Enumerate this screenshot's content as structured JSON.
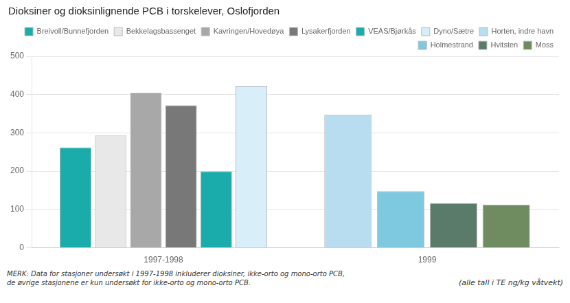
{
  "chart_data": {
    "type": "bar",
    "title": "Dioksiner og dioksinlignende PCB i torskelever, Oslofjorden",
    "categories": [
      "1997-1998",
      "1999"
    ],
    "series": [
      {
        "name": "Breivoll/Bunnefjorden",
        "color": "#1aacaa",
        "values": [
          262,
          null
        ]
      },
      {
        "name": "Bekkelagsbassenget",
        "color": "#e8e8e8",
        "values": [
          293,
          null
        ]
      },
      {
        "name": "Kavringen/Hovedøya",
        "color": "#a8a8a8",
        "values": [
          405,
          null
        ]
      },
      {
        "name": "Lysakerfjorden",
        "color": "#787878",
        "values": [
          372,
          null
        ]
      },
      {
        "name": "VEAS/Bjørkås",
        "color": "#1aacaa",
        "values": [
          200,
          null
        ]
      },
      {
        "name": "Dyno/Sætre",
        "color": "#d8eef8",
        "values": [
          423,
          null
        ]
      },
      {
        "name": "Horten, indre havn",
        "color": "#b8ddf0",
        "values": [
          null,
          348
        ]
      },
      {
        "name": "Holmestrand",
        "color": "#7ec8e0",
        "values": [
          null,
          148
        ]
      },
      {
        "name": "Hvitsten",
        "color": "#5a7a6a",
        "values": [
          null,
          117
        ]
      },
      {
        "name": "Moss",
        "color": "#6e8c60",
        "values": [
          null,
          113
        ]
      }
    ],
    "ylim": [
      0,
      500
    ],
    "yticks": [
      0,
      100,
      200,
      300,
      400,
      500
    ],
    "grid": true,
    "legend": "upper right",
    "annotations": [
      "MERK: Data for stasjoner undersøkt i 1997-1998 inkluderer dioksiner, ikke-orto og mono-orto PCB,\nde øvrige stasjonene er kun undersøkt for ikke-orto og mono-orto PCB.",
      "(alle tall i TE ng/kg våtvekt)"
    ]
  }
}
